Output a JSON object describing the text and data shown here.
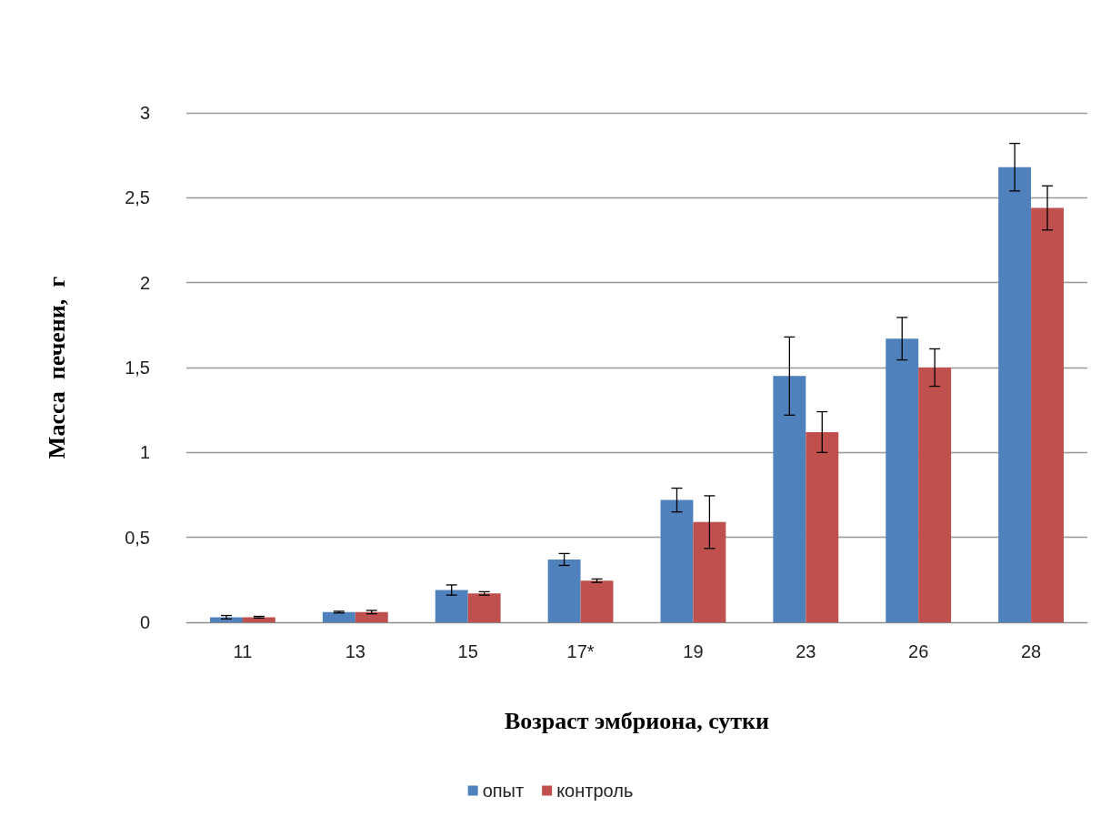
{
  "chart_data": {
    "type": "bar",
    "xlabel": "Возраст эмбриона, сутки",
    "ylabel": "Масса  печени,  г",
    "categories": [
      "11",
      "13",
      "15",
      "17*",
      "19",
      "23",
      "26",
      "28"
    ],
    "series": [
      {
        "name": "опыт",
        "color": "#4f81bd",
        "values": [
          0.03,
          0.06,
          0.19,
          0.37,
          0.72,
          1.45,
          1.67,
          2.68
        ],
        "errors": [
          0.01,
          0.005,
          0.03,
          0.035,
          0.07,
          0.23,
          0.125,
          0.14
        ]
      },
      {
        "name": "контроль",
        "color": "#c0504d",
        "values": [
          0.03,
          0.06,
          0.17,
          0.245,
          0.59,
          1.12,
          1.5,
          2.44
        ],
        "errors": [
          0.005,
          0.01,
          0.01,
          0.01,
          0.155,
          0.12,
          0.11,
          0.13
        ]
      }
    ],
    "ylim": [
      0,
      3
    ],
    "yticks": [
      0,
      {
        "value": 0.5,
        "label": "0,5"
      },
      1,
      {
        "value": 1.5,
        "label": "1,5"
      },
      2,
      {
        "value": 2.5,
        "label": "2,5"
      },
      3
    ],
    "grid": "y",
    "legend": "bottom"
  }
}
